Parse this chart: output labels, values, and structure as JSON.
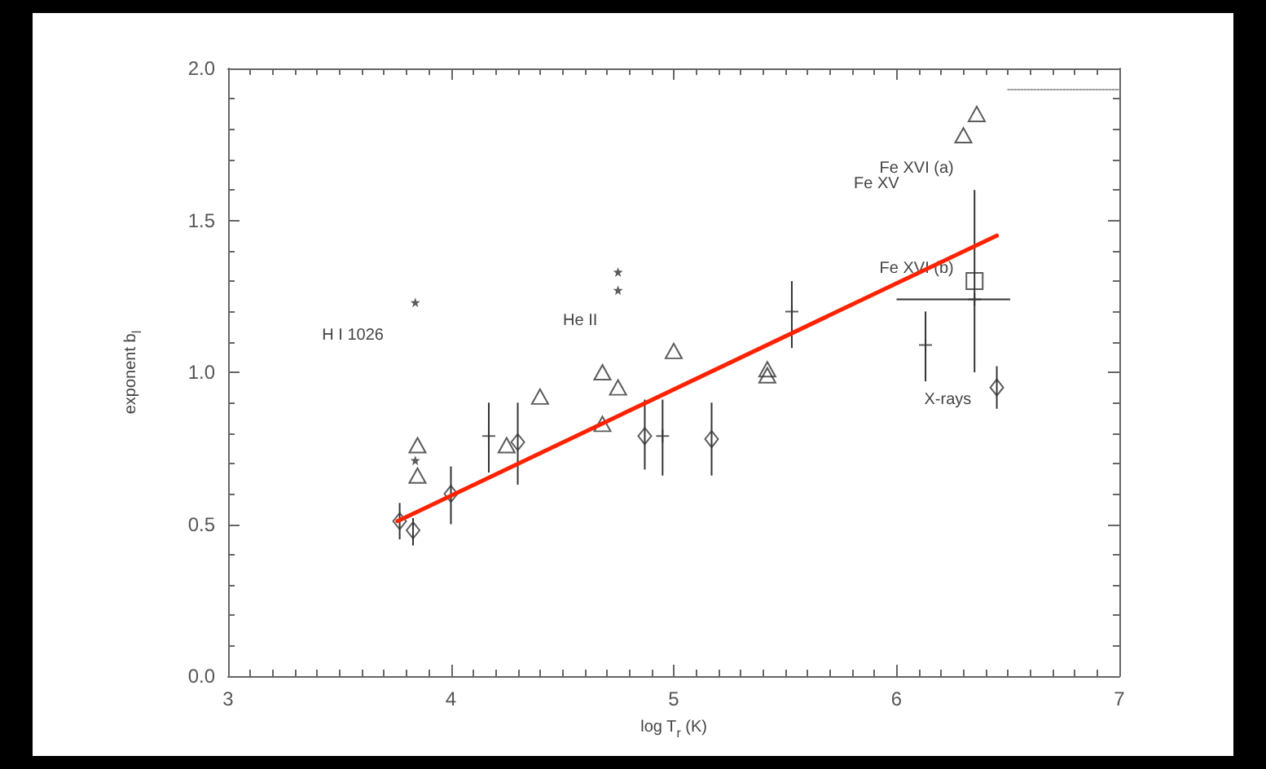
{
  "chart_data": {
    "type": "scatter",
    "xlabel": "log T$_{r}$ (K)",
    "ylabel": "exponent b$_{l}$",
    "xlim": [
      3,
      7
    ],
    "xticks": [
      3,
      4,
      5,
      6,
      7
    ],
    "ylim": [
      0,
      2
    ],
    "yticks": [
      {
        "value": 0,
        "label": "0.0"
      },
      {
        "value": 0.5,
        "label": "0.5"
      },
      {
        "value": 1,
        "label": "1.0"
      },
      {
        "value": 1.5,
        "label": "1.5"
      },
      {
        "value": 2,
        "label": "2.0"
      }
    ],
    "annotations": [
      "H I 1026",
      "He II",
      "Fe XVI (a)",
      "Fe XV",
      "Fe XVI (b)",
      "X-rays"
    ],
    "series": [
      {
        "type": "scatter",
        "marker": "triangle",
        "color": "#333333",
        "x": [
          3.85,
          3.85,
          4.25,
          4.4,
          4.68,
          4.75,
          4.68,
          5.0,
          5.42,
          5.42,
          6.3,
          6.36
        ],
        "values": [
          0.76,
          0.66,
          0.76,
          0.92,
          1.0,
          0.95,
          0.83,
          1.07,
          1.01,
          0.99,
          1.78,
          1.85
        ]
      },
      {
        "type": "scatter",
        "marker": "diamond",
        "color": "#333333",
        "x": [
          3.77,
          3.83,
          4.0,
          4.3,
          4.87,
          5.17,
          6.45
        ],
        "values": [
          0.51,
          0.48,
          0.6,
          0.77,
          0.79,
          0.78,
          0.95
        ],
        "errors": [
          [
            0.45,
            0.57
          ],
          [
            0.43,
            0.52
          ],
          [
            0.5,
            0.69
          ],
          [
            0.63,
            0.9
          ],
          [
            0.68,
            0.91
          ],
          [
            0.66,
            0.9
          ],
          [
            0.88,
            1.02
          ]
        ]
      },
      {
        "type": "scatter",
        "marker": "cross",
        "color": "#333333",
        "x": [
          4.17,
          4.95,
          5.53,
          6.13,
          6.35
        ],
        "values": [
          0.79,
          0.79,
          1.2,
          1.09,
          1.24
        ],
        "errors": [
          [
            0.67,
            0.9
          ],
          [
            0.66,
            0.91
          ],
          [
            1.08,
            1.3
          ],
          [
            0.97,
            1.2
          ],
          [
            1.0,
            1.6
          ]
        ],
        "xerrors": [
          null,
          null,
          null,
          null,
          [
            6.0,
            6.51
          ]
        ]
      },
      {
        "type": "scatter",
        "marker": "star",
        "color": "#333333",
        "x": [
          3.84,
          3.84,
          4.75,
          4.75
        ],
        "values": [
          1.23,
          0.71,
          1.33,
          1.27
        ]
      },
      {
        "type": "scatter",
        "marker": "square",
        "color": "#333333",
        "x": [
          6.35
        ],
        "values": [
          1.3
        ]
      },
      {
        "type": "line",
        "marker": "none",
        "color": "#ff2200",
        "x": [
          3.76,
          6.45
        ],
        "values": [
          0.51,
          1.45
        ]
      },
      {
        "type": "line",
        "marker": "none",
        "line_style": "dotted",
        "color": "#999999",
        "x": [
          6.5,
          7.0
        ],
        "values": [
          1.93,
          1.93
        ]
      }
    ]
  }
}
